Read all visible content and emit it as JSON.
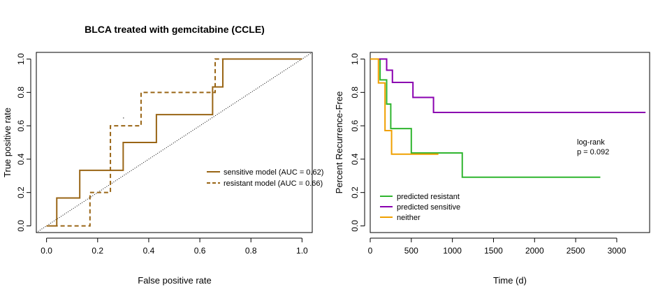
{
  "chart_data": [
    {
      "type": "line",
      "title": "BLCA treated with gemcitabine (CCLE)",
      "xlabel": "False positive rate",
      "ylabel": "True positive rate",
      "xlim": [
        -0.04,
        1.04
      ],
      "ylim": [
        -0.04,
        1.04
      ],
      "xticks": [
        "0.0",
        "0.2",
        "0.4",
        "0.6",
        "0.8",
        "1.0"
      ],
      "yticks": [
        "0.0",
        "0.2",
        "0.4",
        "0.6",
        "0.8",
        "1.0"
      ],
      "grid": false,
      "legend_position": "right",
      "series": [
        {
          "name": "sensitive model (AUC = 0.62)",
          "color": "#996515",
          "dash": "solid",
          "x": [
            0,
            0.04,
            0.04,
            0.13,
            0.13,
            0.3,
            0.3,
            0.43,
            0.43,
            0.65,
            0.65,
            0.69,
            0.69,
            1.0
          ],
          "y": [
            0,
            0,
            0.167,
            0.167,
            0.333,
            0.333,
            0.5,
            0.5,
            0.667,
            0.667,
            0.833,
            0.833,
            1.0,
            1.0
          ]
        },
        {
          "name": "resistant model (AUC = 0.66)",
          "color": "#996515",
          "dash": "dashed",
          "x": [
            0,
            0.17,
            0.17,
            0.25,
            0.25,
            0.37,
            0.37,
            0.66,
            0.66,
            1.0
          ],
          "y": [
            0,
            0,
            0.2,
            0.2,
            0.6,
            0.6,
            0.8,
            0.8,
            1.0,
            1.0
          ]
        }
      ],
      "reference_line": {
        "x": [
          -0.04,
          1.04
        ],
        "y": [
          -0.04,
          1.04
        ],
        "style": "dotted",
        "color": "#000000"
      }
    },
    {
      "type": "line",
      "title": "",
      "xlabel": "Time (d)",
      "ylabel": "Percent Recurrence-Free",
      "xlim": [
        0,
        3400
      ],
      "ylim": [
        -0.04,
        1.04
      ],
      "xticks": [
        "0",
        "500",
        "1000",
        "1500",
        "2000",
        "2500",
        "3000"
      ],
      "yticks": [
        "0.0",
        "0.2",
        "0.4",
        "0.6",
        "0.8",
        "1.0"
      ],
      "grid": false,
      "legend_position": "bottom-left",
      "annotation": [
        "log-rank",
        "p = 0.092"
      ],
      "series": [
        {
          "name": "predicted resistant",
          "color": "#2fb52f",
          "x": [
            0,
            120,
            120,
            200,
            200,
            250,
            250,
            500,
            500,
            1120,
            1120,
            2800
          ],
          "y": [
            1.0,
            1.0,
            0.875,
            0.875,
            0.73,
            0.73,
            0.583,
            0.583,
            0.437,
            0.437,
            0.292,
            0.292
          ]
        },
        {
          "name": "predicted sensitive",
          "color": "#8a00b0",
          "x": [
            0,
            200,
            200,
            270,
            270,
            520,
            520,
            770,
            770,
            3350
          ],
          "y": [
            1.0,
            1.0,
            0.933,
            0.933,
            0.86,
            0.86,
            0.77,
            0.77,
            0.68,
            0.68
          ]
        },
        {
          "name": "neither",
          "color": "#f0a000",
          "x": [
            0,
            100,
            100,
            180,
            180,
            260,
            260,
            830
          ],
          "y": [
            1.0,
            1.0,
            0.857,
            0.857,
            0.571,
            0.571,
            0.43,
            0.43
          ]
        }
      ]
    }
  ]
}
